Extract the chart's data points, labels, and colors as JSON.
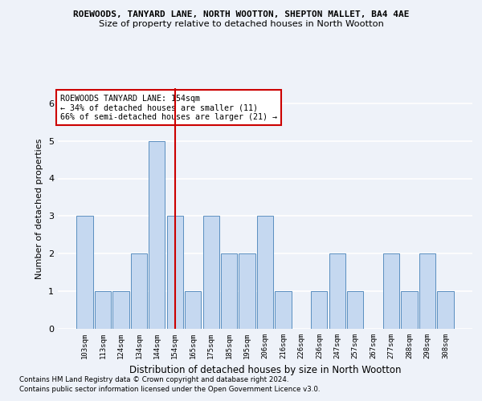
{
  "title": "ROEWOODS, TANYARD LANE, NORTH WOOTTON, SHEPTON MALLET, BA4 4AE",
  "subtitle": "Size of property relative to detached houses in North Wootton",
  "xlabel": "Distribution of detached houses by size in North Wootton",
  "ylabel": "Number of detached properties",
  "categories": [
    "103sqm",
    "113sqm",
    "124sqm",
    "134sqm",
    "144sqm",
    "154sqm",
    "165sqm",
    "175sqm",
    "185sqm",
    "195sqm",
    "206sqm",
    "216sqm",
    "226sqm",
    "236sqm",
    "247sqm",
    "257sqm",
    "267sqm",
    "277sqm",
    "288sqm",
    "298sqm",
    "308sqm"
  ],
  "values": [
    3,
    1,
    1,
    2,
    5,
    3,
    1,
    3,
    2,
    2,
    3,
    1,
    0,
    1,
    2,
    1,
    0,
    2,
    1,
    2,
    1
  ],
  "bar_color": "#c5d8f0",
  "bar_edge_color": "#5a8fc0",
  "vline_index": 5,
  "vline_color": "#cc0000",
  "annotation_text": "ROEWOODS TANYARD LANE: 154sqm\n← 34% of detached houses are smaller (11)\n66% of semi-detached houses are larger (21) →",
  "annotation_box_color": "#ffffff",
  "annotation_box_edge": "#cc0000",
  "ylim": [
    0,
    6.4
  ],
  "yticks": [
    0,
    1,
    2,
    3,
    4,
    5,
    6
  ],
  "footer1": "Contains HM Land Registry data © Crown copyright and database right 2024.",
  "footer2": "Contains public sector information licensed under the Open Government Licence v3.0.",
  "background_color": "#eef2f9",
  "plot_background": "#eef2f9"
}
